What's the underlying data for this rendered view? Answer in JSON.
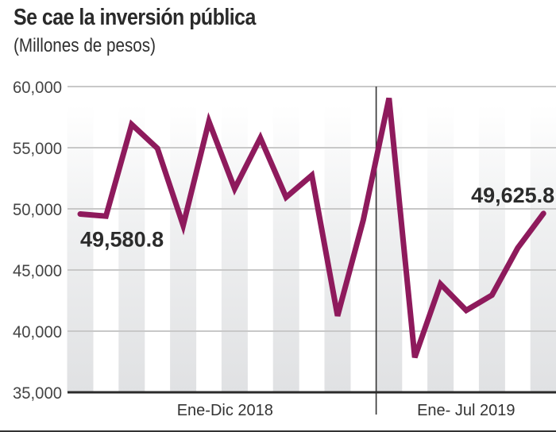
{
  "header": {
    "title": "Se cae la inversión pública",
    "subtitle": "(Millones de pesos)"
  },
  "colors": {
    "line": "#8e1a5c",
    "bar": "#e2e3e5",
    "grid": "#c8c8c8",
    "axis": "#2b2b2b"
  },
  "chart_data": {
    "type": "line",
    "title": "Se cae la inversión pública",
    "subtitle": "(Millones de pesos)",
    "xlabel": "",
    "ylabel": "",
    "ylim": [
      35000,
      60000
    ],
    "yticks": [
      60000,
      55000,
      50000,
      45000,
      40000,
      35000
    ],
    "ytick_labels": [
      "60,000",
      "55,000",
      "50,000",
      "45,000",
      "40,000",
      "35,000"
    ],
    "grid": true,
    "period_labels": [
      "Ene-Dic 2018",
      "Ene- Jul 2019"
    ],
    "period_counts": [
      12,
      7
    ],
    "series": [
      {
        "name": "Inversión pública",
        "values": [
          49580.8,
          49400,
          56900,
          54950,
          48650,
          57150,
          51650,
          55800,
          50950,
          52750,
          41250,
          49100,
          59050,
          37850,
          43850,
          41700,
          42950,
          46800,
          49625.8
        ]
      }
    ],
    "annotations": [
      {
        "index": 0,
        "text": "49,580.8"
      },
      {
        "index": 18,
        "text": "49,625.8"
      }
    ]
  }
}
